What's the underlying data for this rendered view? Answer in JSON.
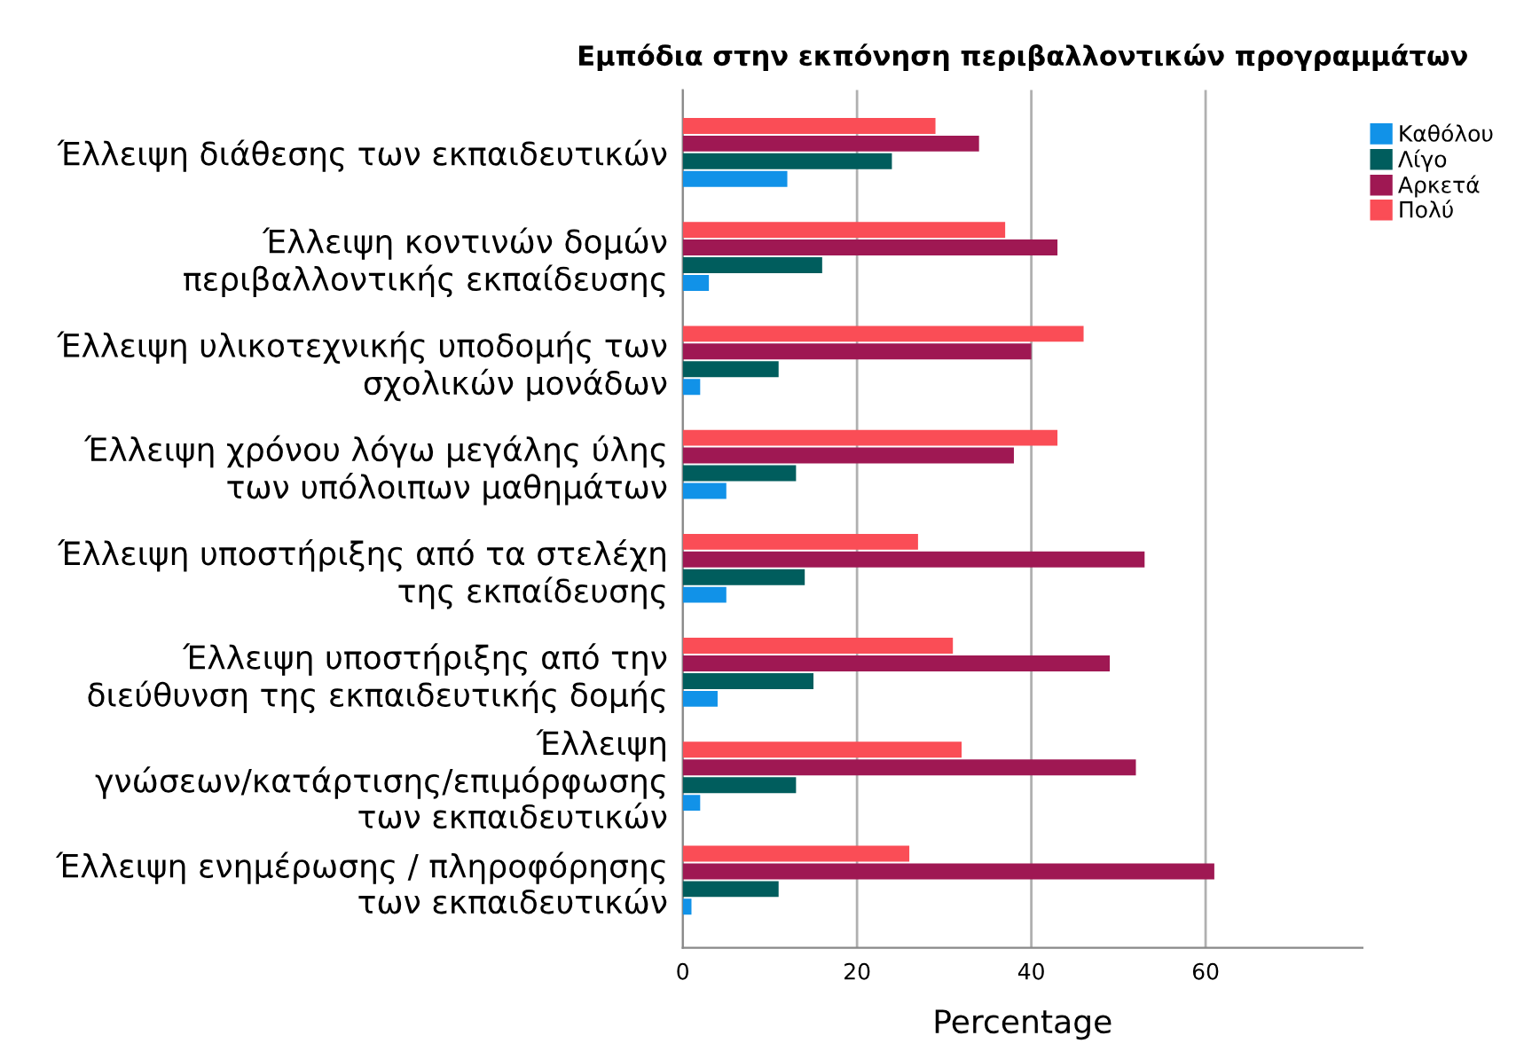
{
  "chart_data": {
    "type": "bar",
    "orientation": "horizontal",
    "title": "Εμπόδια στην εκπόνηση περιβαλλοντικών προγραμμάτων",
    "xlabel": "Percentage",
    "categories": [
      "Έλλειψη διάθεσης των εκπαιδευτικών",
      "Έλλειψη κοντινών δομών\nπεριβαλλοντικής εκπαίδευσης",
      "Έλλειψη υλικοτεχνικής υποδομής των\nσχολικών μονάδων",
      "Έλλειψη χρόνου λόγω μεγάλης ύλης\nτων υπόλοιπων μαθημάτων",
      "Έλλειψη υποστήριξης από τα στελέχη\nτης εκπαίδευσης",
      "Έλλειψη υποστήριξης από την\nδιεύθυνση της εκπαιδευτικής δομής",
      "Έλλειψη\nγνώσεων/κατάρτισης/επιμόρφωσης\nτων εκπαιδευτικών",
      "Έλλειψη ενημέρωσης / πληροφόρησης\nτων εκπαιδευτικών"
    ],
    "series": [
      {
        "name": "Καθόλου",
        "color": "#1192e8",
        "values": [
          12,
          3,
          2,
          5,
          5,
          4,
          2,
          1
        ]
      },
      {
        "name": "Λίγο",
        "color": "#005d5d",
        "values": [
          24,
          16,
          11,
          13,
          14,
          15,
          13,
          11
        ]
      },
      {
        "name": "Αρκετά",
        "color": "#9f1853",
        "values": [
          34,
          43,
          40,
          38,
          53,
          49,
          52,
          61
        ]
      },
      {
        "name": "Πολύ",
        "color": "#fa4d56",
        "values": [
          29,
          37,
          46,
          43,
          27,
          31,
          32,
          26
        ]
      }
    ],
    "xlim": [
      0,
      78
    ],
    "xticks": [
      0,
      20,
      40,
      60
    ],
    "grid": "x",
    "legend": "top right"
  }
}
